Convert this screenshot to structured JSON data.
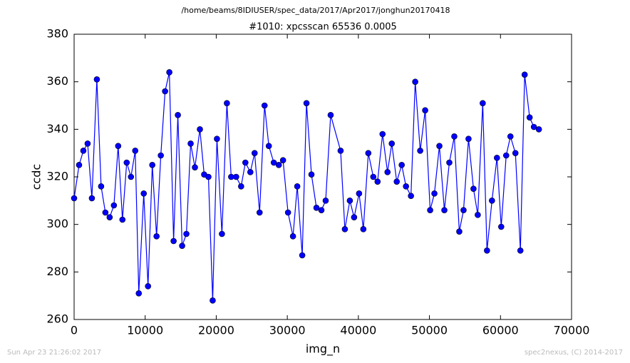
{
  "chart_data": {
    "type": "line",
    "suptitle": "/home/beams/8IDIUSER/spec_data/2017/Apr2017/jonghun20170418",
    "title": "#1010: xpcsscan 65536 0.0005",
    "xlabel": "img_n",
    "ylabel": "ccdc",
    "footer_left": "Sun Apr 23 21:26:02 2017",
    "footer_right": "spec2nexus, (C) 2014-2017",
    "x": [
      0,
      700,
      1300,
      1900,
      2500,
      3200,
      3800,
      4400,
      5000,
      5600,
      6200,
      6800,
      7400,
      8000,
      8600,
      9100,
      9800,
      10400,
      11000,
      11600,
      12200,
      12800,
      13400,
      14000,
      14600,
      15200,
      15800,
      16400,
      17000,
      17700,
      18300,
      18900,
      19500,
      20100,
      20800,
      21500,
      22100,
      22800,
      23500,
      24100,
      24800,
      25400,
      26100,
      26800,
      27400,
      28100,
      28800,
      29400,
      30100,
      30800,
      31400,
      32100,
      32700,
      33400,
      34100,
      34800,
      35400,
      36100,
      37500,
      38100,
      38800,
      39400,
      40100,
      40700,
      41400,
      42100,
      42700,
      43400,
      44100,
      44700,
      45400,
      46100,
      46700,
      47400,
      48000,
      48700,
      49400,
      50100,
      50700,
      51400,
      52100,
      52800,
      53500,
      54200,
      54800,
      55500,
      56200,
      56800,
      57500,
      58100,
      58800,
      59500,
      60100,
      60800,
      61400,
      62100,
      62800,
      63400,
      64100,
      64700,
      65400
    ],
    "series": [
      {
        "name": "ccdc",
        "color": "#0000ff",
        "values": [
          311,
          325,
          331,
          334,
          311,
          361,
          316,
          305,
          303,
          308,
          333,
          302,
          326,
          320,
          331,
          271,
          313,
          274,
          325,
          295,
          329,
          356,
          364,
          293,
          346,
          291,
          296,
          334,
          324,
          340,
          321,
          320,
          268,
          336,
          296,
          351,
          320,
          320,
          316,
          326,
          322,
          330,
          305,
          350,
          333,
          326,
          325,
          327,
          305,
          295,
          316,
          287,
          351,
          321,
          307,
          306,
          310,
          346,
          331,
          298,
          310,
          303,
          313,
          298,
          330,
          320,
          318,
          338,
          322,
          334,
          318,
          325,
          316,
          312,
          360,
          331,
          348,
          306,
          313,
          333,
          306,
          326,
          337,
          297,
          306,
          336,
          315,
          304,
          351,
          289,
          310,
          328,
          299,
          329,
          337,
          330,
          289,
          363,
          345,
          341,
          340
        ]
      }
    ],
    "xlim": [
      0,
      70000
    ],
    "xticks": [
      0,
      10000,
      20000,
      30000,
      40000,
      50000,
      60000,
      70000
    ],
    "ylim": [
      260,
      380
    ],
    "yticks": [
      260,
      280,
      300,
      320,
      340,
      360,
      380
    ],
    "grid": false
  }
}
